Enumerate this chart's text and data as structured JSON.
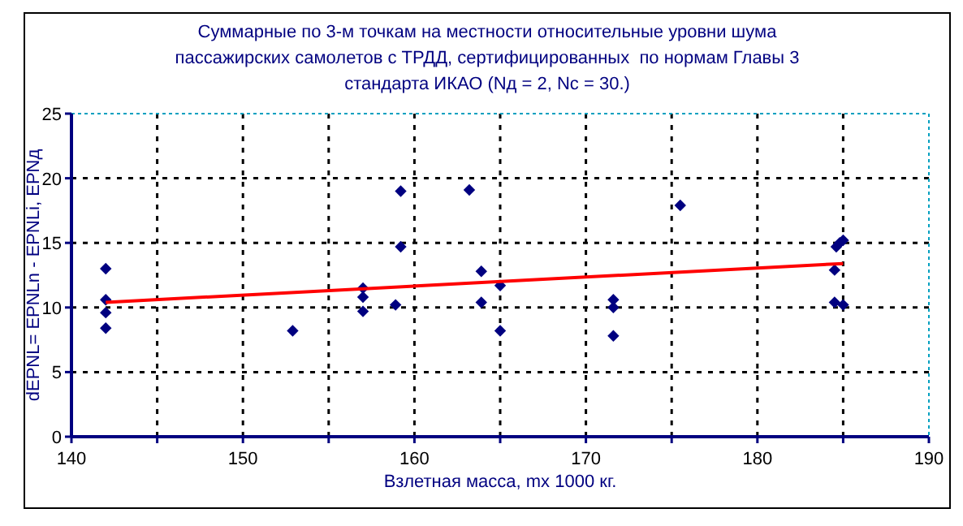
{
  "chart_data": {
    "type": "scatter",
    "title": "Суммарные по 3-м точкам на местности относительные уровни шума\nпассажирских самолетов с ТРДД, сертифицированных  по нормам Главы 3\nстандарта ИКАО (Nд = 2, Nс = 30.)",
    "xlabel": "Взлетная масса, mx 1000 кг.",
    "ylabel": "dEPNL= EPNLn - EPNLi, EPNд",
    "xlim": [
      140,
      190
    ],
    "ylim": [
      0,
      25
    ],
    "xticks": [
      140,
      {
        "value": 145,
        "label": null
      },
      150,
      {
        "value": 155,
        "label": null
      },
      160,
      {
        "value": 165,
        "label": null
      },
      170,
      {
        "value": 175,
        "label": null
      },
      180,
      {
        "value": 185,
        "label": null
      },
      190
    ],
    "yticks": [
      0,
      5,
      10,
      15,
      20,
      25
    ],
    "grid": true,
    "marker": "diamond",
    "series": [
      {
        "color": "#000080",
        "x": [
          142,
          142,
          142,
          142,
          152.9,
          157,
          157,
          157,
          158.9,
          159.2,
          159.2,
          163.2,
          163.9,
          163.9,
          165,
          165,
          171.6,
          171.6,
          171.6,
          175.5,
          184.5,
          184.5,
          185,
          184.6,
          184.8,
          185
        ],
        "values": [
          13,
          10.6,
          9.6,
          8.4,
          8.2,
          11.5,
          10.8,
          9.7,
          10.2,
          19,
          14.7,
          19.1,
          12.8,
          10.4,
          11.7,
          8.2,
          10.6,
          10,
          7.8,
          17.9,
          12.9,
          10.4,
          10.2,
          14.7,
          15,
          15.2
        ]
      },
      {
        "type": "line",
        "color": "#ff0000",
        "marker": "none",
        "x": [
          142,
          185
        ],
        "values": [
          10.4,
          13.4
        ]
      }
    ]
  }
}
